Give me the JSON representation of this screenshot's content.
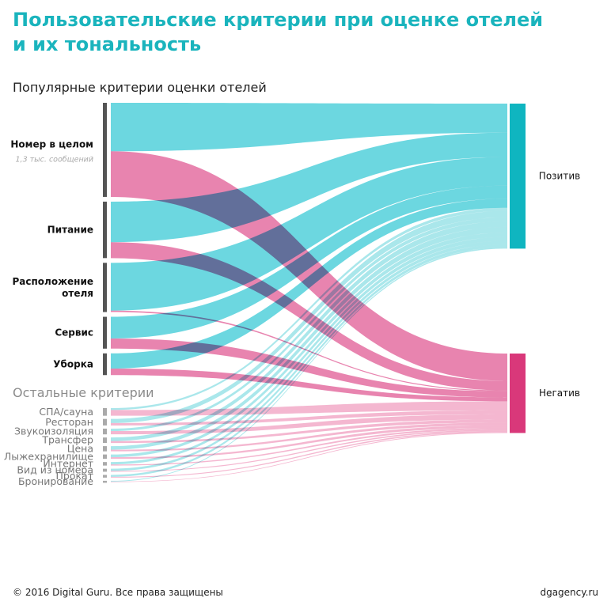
{
  "title": {
    "line1": "Пользовательские критерии при оценке отелей",
    "line2": "и их тональность"
  },
  "section_popular": "Популярные критерии оценки отелей",
  "section_other": "Остальные критерии",
  "primary_note": "1,3 тыс. сообщений",
  "targets": [
    {
      "label": "Позитив",
      "color": "#0fb5c0"
    },
    {
      "label": "Негатив",
      "color": "#d9387a"
    }
  ],
  "colors": {
    "positive_flow": "#5fd4dd",
    "negative_flow": "#e67aa8",
    "positive_flow_other": "#9be3e8",
    "negative_flow_other": "#f2aac8",
    "bar_popular": "#555555",
    "bar_other": "#aaaaaa"
  },
  "criteria": [
    {
      "name": "Номер в целом",
      "group": "popular",
      "total": 1300,
      "positive": 670,
      "negative": 630
    },
    {
      "name": "Питание",
      "group": "popular",
      "total": 780,
      "positive": 560,
      "negative": 220
    },
    {
      "name": "Расположение отеля",
      "group": "popular",
      "total": 680,
      "positive": 660,
      "negative": 20
    },
    {
      "name": "Сервис",
      "group": "popular",
      "total": 440,
      "positive": 300,
      "negative": 140
    },
    {
      "name": "Уборка",
      "group": "popular",
      "total": 300,
      "positive": 210,
      "negative": 90
    },
    {
      "name": "СПА/сауна",
      "group": "other",
      "total": 280,
      "positive": 70,
      "negative": 210
    },
    {
      "name": "Ресторан",
      "group": "other",
      "total": 240,
      "positive": 150,
      "negative": 90
    },
    {
      "name": "Звукоизоляция",
      "group": "other",
      "total": 210,
      "positive": 90,
      "negative": 120
    },
    {
      "name": "Трансфер",
      "group": "other",
      "total": 200,
      "positive": 130,
      "negative": 70
    },
    {
      "name": "Цена",
      "group": "other",
      "total": 190,
      "positive": 130,
      "negative": 60
    },
    {
      "name": "Лыжехранилище",
      "group": "other",
      "total": 160,
      "positive": 100,
      "negative": 60
    },
    {
      "name": "Интернет",
      "group": "other",
      "total": 130,
      "positive": 90,
      "negative": 40
    },
    {
      "name": "Вид из номера",
      "group": "other",
      "total": 110,
      "positive": 80,
      "negative": 30
    },
    {
      "name": "Прокат",
      "group": "other",
      "total": 100,
      "positive": 70,
      "negative": 30
    },
    {
      "name": "Бронирование",
      "group": "other",
      "total": 50,
      "positive": 30,
      "negative": 20
    }
  ],
  "footer": {
    "copyright": "© 2016 Digital Guru. Все права защищены",
    "site": "dgagency.ru"
  }
}
